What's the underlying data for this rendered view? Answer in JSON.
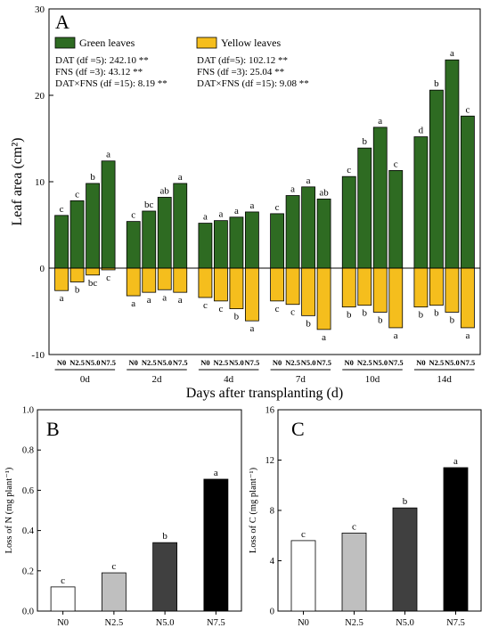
{
  "chart_data": [
    {
      "panel": "A",
      "type": "bar",
      "xlabel": "Days after transplanting (d)",
      "ylabel": "Leaf area (cm²)",
      "ylim": [
        -10,
        30
      ],
      "yticks": [
        -10,
        0,
        10,
        20,
        30
      ],
      "groups": [
        "0d",
        "2d",
        "4d",
        "7d",
        "10d",
        "14d"
      ],
      "treatments": [
        "N0",
        "N2.5",
        "N5.0",
        "N7.5"
      ],
      "legend": {
        "placement": "top",
        "green": "Green leaves",
        "yellow": "Yellow leaves"
      },
      "colors": {
        "green": "#2e6b22",
        "yellow": "#f5be1d"
      },
      "stats_green": [
        "DAT (df =5): 242.10 **",
        "FNS (df =3): 43.12 **",
        "DAT×FNS (df =15): 8.19 **"
      ],
      "stats_yellow": [
        "DAT (df=5): 102.12 **",
        "FNS (df =3): 25.04 **",
        "DAT×FNS (df =15): 9.08 **"
      ],
      "series": [
        {
          "name": "Green leaves",
          "values": [
            [
              6.1,
              7.8,
              9.8,
              12.4
            ],
            [
              5.4,
              6.6,
              8.2,
              9.8
            ],
            [
              5.2,
              5.5,
              5.9,
              6.5
            ],
            [
              6.3,
              8.4,
              9.4,
              8.0
            ],
            [
              10.6,
              13.9,
              16.3,
              11.3
            ],
            [
              15.2,
              20.6,
              24.1,
              17.6
            ]
          ],
          "letters": [
            [
              "c",
              "c",
              "b",
              "a"
            ],
            [
              "c",
              "bc",
              "ab",
              "a"
            ],
            [
              "a",
              "a",
              "a",
              "a"
            ],
            [
              "c",
              "a",
              "a",
              "ab"
            ],
            [
              "c",
              "b",
              "a",
              "c"
            ],
            [
              "d",
              "b",
              "a",
              "c"
            ]
          ]
        },
        {
          "name": "Yellow leaves",
          "values": [
            [
              -2.6,
              -1.6,
              -0.8,
              -0.2
            ],
            [
              -3.2,
              -2.8,
              -2.5,
              -2.8
            ],
            [
              -3.4,
              -3.8,
              -4.7,
              -6.1
            ],
            [
              -3.8,
              -4.2,
              -5.5,
              -7.1
            ],
            [
              -4.5,
              -4.3,
              -5.1,
              -6.9
            ],
            [
              -4.5,
              -4.3,
              -5.1,
              -6.9
            ]
          ],
          "letters": [
            [
              "a",
              "b",
              "bc",
              "c"
            ],
            [
              "a",
              "a",
              "a",
              "a"
            ],
            [
              "c",
              "c",
              "b",
              "a"
            ],
            [
              "c",
              "c",
              "b",
              "a"
            ],
            [
              "b",
              "b",
              "b",
              "a"
            ],
            [
              "b",
              "b",
              "b",
              "a"
            ]
          ]
        }
      ]
    },
    {
      "panel": "B",
      "type": "bar",
      "xlabel": "",
      "ylabel": "Loss of N (mg plant⁻¹)",
      "ylim": [
        0,
        1.0
      ],
      "yticks": [
        "0.0",
        "0.2",
        "0.4",
        "0.6",
        "0.8",
        "1.0"
      ],
      "categories": [
        "N0",
        "N2.5",
        "N5.0",
        "N7.5"
      ],
      "values": [
        0.12,
        0.19,
        0.34,
        0.655
      ],
      "letters": [
        "c",
        "c",
        "b",
        "a"
      ],
      "colors": [
        "#ffffff",
        "#bfbfbf",
        "#404040",
        "#000000"
      ]
    },
    {
      "panel": "C",
      "type": "bar",
      "xlabel": "",
      "ylabel": "Loss of C (mg plant⁻¹)",
      "ylim": [
        0,
        16
      ],
      "yticks": [
        "0",
        "4",
        "8",
        "12",
        "16"
      ],
      "categories": [
        "N0",
        "N2.5",
        "N5.0",
        "N7.5"
      ],
      "values": [
        5.6,
        6.2,
        8.2,
        11.4
      ],
      "letters": [
        "c",
        "c",
        "b",
        "a"
      ],
      "colors": [
        "#ffffff",
        "#bfbfbf",
        "#404040",
        "#000000"
      ]
    }
  ]
}
